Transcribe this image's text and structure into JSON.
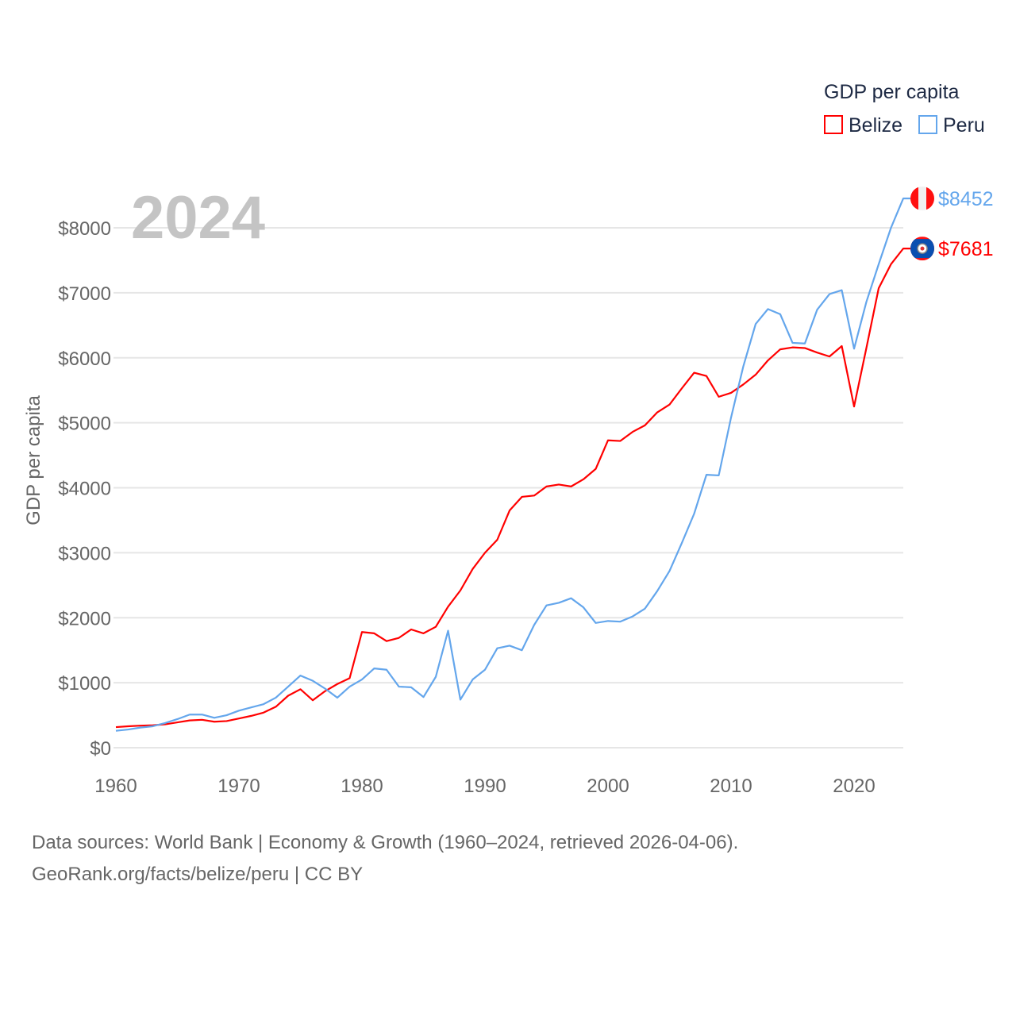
{
  "chart_data": {
    "type": "line",
    "title": "",
    "xlabel": "",
    "ylabel": "GDP per capita",
    "year_watermark": "2024",
    "legend": {
      "title": "GDP per capita",
      "placement": "top-right"
    },
    "xlim": [
      1960,
      2024
    ],
    "ylim": [
      0,
      8500
    ],
    "x_ticks": [
      1960,
      1970,
      1980,
      1990,
      2000,
      2010,
      2020
    ],
    "y_ticks": [
      0,
      1000,
      2000,
      3000,
      4000,
      5000,
      6000,
      7000,
      8000
    ],
    "y_tick_labels": [
      "$0",
      "$1000",
      "$2000",
      "$3000",
      "$4000",
      "$5000",
      "$6000",
      "$7000",
      "$8000"
    ],
    "grid": true,
    "x_start": 1960,
    "series": [
      {
        "name": "Belize",
        "color": "#ff0000",
        "end_label": "$7681",
        "flag": "belize-flag",
        "values": [
          317,
          330,
          340,
          345,
          360,
          390,
          420,
          430,
          400,
          410,
          450,
          490,
          540,
          630,
          800,
          900,
          730,
          870,
          980,
          1070,
          1780,
          1760,
          1640,
          1690,
          1820,
          1760,
          1860,
          2170,
          2420,
          2750,
          3000,
          3200,
          3650,
          3860,
          3880,
          4020,
          4050,
          4020,
          4130,
          4290,
          4730,
          4720,
          4860,
          4960,
          5160,
          5280,
          5530,
          5770,
          5720,
          5400,
          5460,
          5590,
          5740,
          5960,
          6130,
          6160,
          6150,
          6080,
          6020,
          6180,
          5250,
          6150,
          7070,
          7440,
          7681
        ]
      },
      {
        "name": "Peru",
        "color": "#64a6ec",
        "end_label": "$8452",
        "flag": "peru-flag",
        "values": [
          260,
          280,
          310,
          330,
          380,
          440,
          510,
          510,
          460,
          500,
          570,
          620,
          670,
          770,
          940,
          1110,
          1030,
          910,
          770,
          940,
          1050,
          1220,
          1200,
          940,
          930,
          780,
          1090,
          1800,
          740,
          1050,
          1200,
          1530,
          1570,
          1500,
          1890,
          2190,
          2230,
          2300,
          2160,
          1920,
          1950,
          1940,
          2020,
          2140,
          2410,
          2720,
          3150,
          3600,
          4200,
          4190,
          5080,
          5870,
          6520,
          6750,
          6670,
          6230,
          6220,
          6740,
          6980,
          7040,
          6140,
          6860,
          7440,
          8000,
          8452
        ]
      }
    ]
  },
  "footer": {
    "line1": "Data sources: World Bank | Economy & Growth (1960–2024, retrieved 2026-04-06).",
    "line2": "GeoRank.org/facts/belize/peru | CC BY"
  }
}
